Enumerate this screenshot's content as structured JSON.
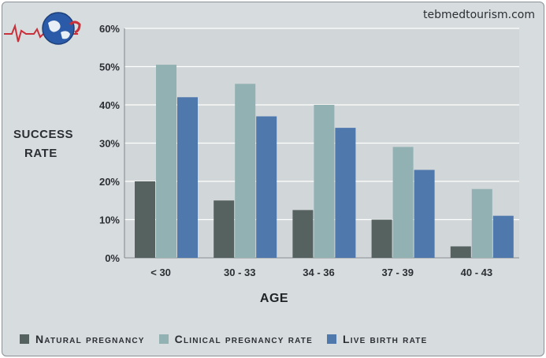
{
  "watermark": "tebmedtourism.com",
  "colors": {
    "natural": "#56625f",
    "clinical": "#91b1b3",
    "live": "#4f78ad",
    "grid": "#ffffff",
    "plot_bg": "#d1d6d9"
  },
  "chart_data": {
    "type": "bar",
    "title": "",
    "xlabel": "AGE",
    "ylabel": [
      "SUCCESS",
      "RATE"
    ],
    "categories": [
      "< 30",
      "30 - 33",
      "34 - 36",
      "37 - 39",
      "40 - 43"
    ],
    "ylim": [
      0,
      60
    ],
    "yticks": [
      "0%",
      "10%",
      "20%",
      "30%",
      "40%",
      "50%",
      "60%"
    ],
    "series": [
      {
        "name": "Natural pregnancy",
        "color_key": "natural",
        "values": [
          20,
          15,
          12.5,
          10,
          3
        ]
      },
      {
        "name": "Clinical pregnancy rate",
        "color_key": "clinical",
        "values": [
          50.5,
          45.5,
          40,
          29,
          18
        ]
      },
      {
        "name": "Live birth rate",
        "color_key": "live",
        "values": [
          42,
          37,
          34,
          23,
          11
        ]
      }
    ],
    "legend_position": "bottom"
  }
}
